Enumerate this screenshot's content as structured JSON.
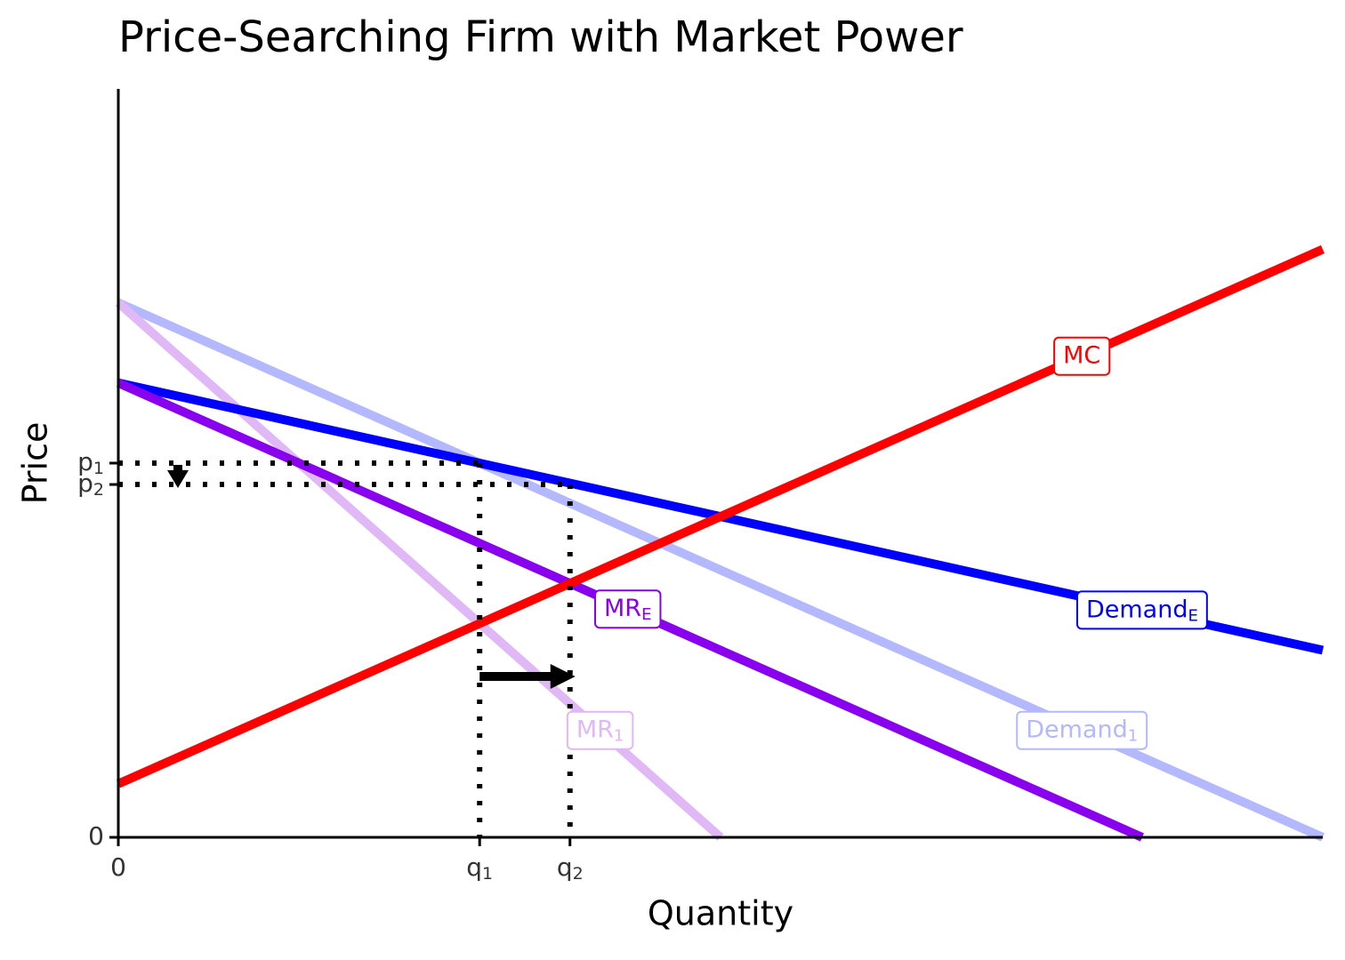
{
  "chart_data": {
    "type": "line",
    "title": "Price-Searching Firm with Market Power",
    "x_label": "Quantity",
    "y_label": "Price",
    "xlim": [
      0,
      10
    ],
    "ylim": [
      0,
      14
    ],
    "xticks": [
      0,
      {
        "value": 3,
        "label": "q",
        "subscript": "1"
      },
      {
        "value": 3.75,
        "label": "q",
        "subscript": "2"
      }
    ],
    "yticks": [
      0,
      {
        "value": 7,
        "label": "p",
        "subscript": "1"
      },
      {
        "value": 6.6,
        "label": "p",
        "subscript": "2"
      }
    ],
    "series": [
      {
        "name": "Demand",
        "subscript": "1",
        "color": "#b3b8ff",
        "x": [
          0,
          10
        ],
        "values": [
          10,
          0
        ]
      },
      {
        "name": "MR",
        "subscript": "1",
        "color": "#dfb8f5",
        "x": [
          0,
          5
        ],
        "values": [
          10,
          0
        ]
      },
      {
        "name": "Demand",
        "subscript": "E",
        "color": "#0000ff",
        "x": [
          0,
          10
        ],
        "values": [
          8.5,
          3.5
        ]
      },
      {
        "name": "MR",
        "subscript": "E",
        "color": "#8800ee",
        "x": [
          0,
          8.5
        ],
        "values": [
          8.5,
          0
        ]
      },
      {
        "name": "MC",
        "color": "#ff0000",
        "x": [
          0,
          10
        ],
        "values": [
          1,
          11
        ]
      }
    ]
  }
}
